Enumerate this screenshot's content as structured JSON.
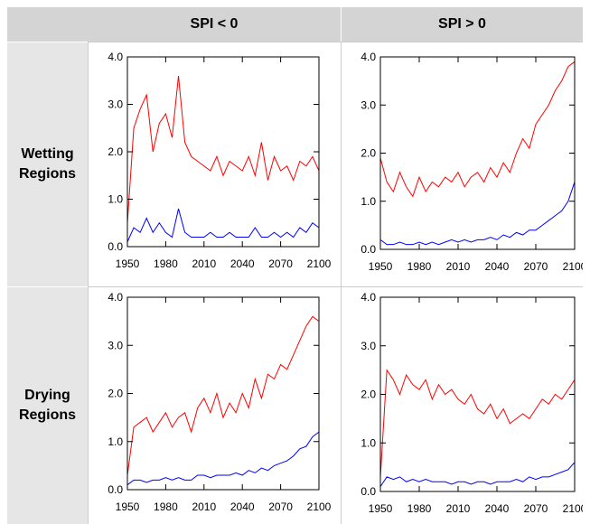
{
  "table": {
    "columns": [
      "SPI < 0",
      "SPI > 0"
    ],
    "rows": [
      "Wetting Regions",
      "Drying Regions"
    ]
  },
  "chart_data": [
    {
      "type": "line",
      "x": [
        1950,
        1955,
        1960,
        1965,
        1970,
        1975,
        1980,
        1985,
        1990,
        1995,
        2000,
        2005,
        2010,
        2015,
        2020,
        2025,
        2030,
        2035,
        2040,
        2045,
        2050,
        2055,
        2060,
        2065,
        2070,
        2075,
        2080,
        2085,
        2090,
        2095,
        2100
      ],
      "series": [
        {
          "color": "#ff0000",
          "values": [
            0.5,
            2.5,
            2.9,
            3.2,
            2.0,
            2.6,
            2.8,
            2.3,
            3.6,
            2.2,
            1.9,
            1.8,
            1.7,
            1.6,
            1.9,
            1.5,
            1.8,
            1.7,
            1.6,
            1.9,
            1.5,
            2.2,
            1.4,
            1.9,
            1.6,
            1.7,
            1.4,
            1.8,
            1.7,
            1.9,
            1.6
          ]
        },
        {
          "color": "#0000ff",
          "values": [
            0.1,
            0.4,
            0.3,
            0.6,
            0.3,
            0.5,
            0.3,
            0.2,
            0.8,
            0.3,
            0.2,
            0.2,
            0.2,
            0.3,
            0.2,
            0.2,
            0.3,
            0.2,
            0.2,
            0.2,
            0.4,
            0.2,
            0.2,
            0.3,
            0.2,
            0.3,
            0.2,
            0.4,
            0.3,
            0.5,
            0.4
          ]
        }
      ],
      "xlim": [
        1950,
        2100
      ],
      "ylim": [
        0,
        4
      ],
      "xticks": [
        1950,
        1980,
        2010,
        2040,
        2070,
        2100
      ],
      "yticks": [
        {
          "value": 0,
          "label": "0.0"
        },
        {
          "value": 1,
          "label": "1.0"
        },
        {
          "value": 2,
          "label": "2.0"
        },
        {
          "value": 3,
          "label": "3.0"
        },
        {
          "value": 4,
          "label": "4.0"
        }
      ]
    },
    {
      "type": "line",
      "x": [
        1950,
        1955,
        1960,
        1965,
        1970,
        1975,
        1980,
        1985,
        1990,
        1995,
        2000,
        2005,
        2010,
        2015,
        2020,
        2025,
        2030,
        2035,
        2040,
        2045,
        2050,
        2055,
        2060,
        2065,
        2070,
        2075,
        2080,
        2085,
        2090,
        2095,
        2100
      ],
      "series": [
        {
          "color": "#ff0000",
          "values": [
            1.9,
            1.4,
            1.2,
            1.6,
            1.3,
            1.1,
            1.5,
            1.2,
            1.4,
            1.3,
            1.5,
            1.4,
            1.6,
            1.3,
            1.5,
            1.6,
            1.4,
            1.7,
            1.5,
            1.8,
            1.6,
            2.0,
            2.3,
            2.1,
            2.6,
            2.8,
            3.0,
            3.3,
            3.5,
            3.8,
            3.9
          ]
        },
        {
          "color": "#0000ff",
          "values": [
            0.2,
            0.1,
            0.1,
            0.15,
            0.1,
            0.1,
            0.15,
            0.1,
            0.15,
            0.1,
            0.15,
            0.2,
            0.15,
            0.2,
            0.15,
            0.2,
            0.2,
            0.25,
            0.2,
            0.3,
            0.25,
            0.35,
            0.3,
            0.4,
            0.4,
            0.5,
            0.6,
            0.7,
            0.8,
            1.0,
            1.4
          ]
        }
      ],
      "xlim": [
        1950,
        2100
      ],
      "ylim": [
        0,
        4
      ],
      "xticks": [
        1950,
        1980,
        2010,
        2040,
        2070,
        2100
      ],
      "yticks": [
        {
          "value": 0,
          "label": "0.0"
        },
        {
          "value": 1,
          "label": "1.0"
        },
        {
          "value": 2,
          "label": "2.0"
        },
        {
          "value": 3,
          "label": "3.0"
        },
        {
          "value": 4,
          "label": "4.0"
        }
      ]
    },
    {
      "type": "line",
      "x": [
        1950,
        1955,
        1960,
        1965,
        1970,
        1975,
        1980,
        1985,
        1990,
        1995,
        2000,
        2005,
        2010,
        2015,
        2020,
        2025,
        2030,
        2035,
        2040,
        2045,
        2050,
        2055,
        2060,
        2065,
        2070,
        2075,
        2080,
        2085,
        2090,
        2095,
        2100
      ],
      "series": [
        {
          "color": "#ff0000",
          "values": [
            0.3,
            1.3,
            1.4,
            1.5,
            1.2,
            1.4,
            1.6,
            1.3,
            1.5,
            1.6,
            1.2,
            1.7,
            1.9,
            1.6,
            2.0,
            1.5,
            1.8,
            1.6,
            2.0,
            1.7,
            2.3,
            1.9,
            2.4,
            2.3,
            2.6,
            2.5,
            2.8,
            3.1,
            3.4,
            3.6,
            3.5
          ]
        },
        {
          "color": "#0000ff",
          "values": [
            0.1,
            0.2,
            0.2,
            0.15,
            0.2,
            0.2,
            0.25,
            0.2,
            0.25,
            0.2,
            0.2,
            0.3,
            0.3,
            0.25,
            0.3,
            0.3,
            0.3,
            0.35,
            0.3,
            0.4,
            0.35,
            0.45,
            0.4,
            0.5,
            0.55,
            0.6,
            0.7,
            0.85,
            0.9,
            1.1,
            1.2
          ]
        }
      ],
      "xlim": [
        1950,
        2100
      ],
      "ylim": [
        0,
        4
      ],
      "xticks": [
        1950,
        1980,
        2010,
        2040,
        2070,
        2100
      ],
      "yticks": [
        {
          "value": 0,
          "label": "0.0"
        },
        {
          "value": 1,
          "label": "1.0"
        },
        {
          "value": 2,
          "label": "2.0"
        },
        {
          "value": 3,
          "label": "3.0"
        },
        {
          "value": 4,
          "label": "4.0"
        }
      ]
    },
    {
      "type": "line",
      "x": [
        1950,
        1955,
        1960,
        1965,
        1970,
        1975,
        1980,
        1985,
        1990,
        1995,
        2000,
        2005,
        2010,
        2015,
        2020,
        2025,
        2030,
        2035,
        2040,
        2045,
        2050,
        2055,
        2060,
        2065,
        2070,
        2075,
        2080,
        2085,
        2090,
        2095,
        2100
      ],
      "series": [
        {
          "color": "#ff0000",
          "values": [
            0.3,
            2.5,
            2.3,
            2.0,
            2.4,
            2.2,
            2.1,
            2.3,
            1.9,
            2.2,
            2.0,
            2.1,
            1.9,
            1.8,
            2.0,
            1.7,
            1.6,
            1.8,
            1.5,
            1.7,
            1.4,
            1.5,
            1.6,
            1.5,
            1.7,
            1.9,
            1.8,
            2.0,
            1.9,
            2.1,
            2.3
          ]
        },
        {
          "color": "#0000ff",
          "values": [
            0.1,
            0.3,
            0.25,
            0.3,
            0.2,
            0.25,
            0.2,
            0.25,
            0.2,
            0.2,
            0.2,
            0.15,
            0.2,
            0.2,
            0.15,
            0.2,
            0.2,
            0.15,
            0.2,
            0.2,
            0.2,
            0.25,
            0.2,
            0.3,
            0.25,
            0.3,
            0.3,
            0.35,
            0.4,
            0.45,
            0.6
          ]
        }
      ],
      "xlim": [
        1950,
        2100
      ],
      "ylim": [
        0,
        4
      ],
      "xticks": [
        1950,
        1980,
        2010,
        2040,
        2070,
        2100
      ],
      "yticks": [
        {
          "value": 0,
          "label": "0.0"
        },
        {
          "value": 1,
          "label": "1.0"
        },
        {
          "value": 2,
          "label": "2.0"
        },
        {
          "value": 3,
          "label": "3.0"
        },
        {
          "value": 4,
          "label": "4.0"
        }
      ]
    }
  ]
}
